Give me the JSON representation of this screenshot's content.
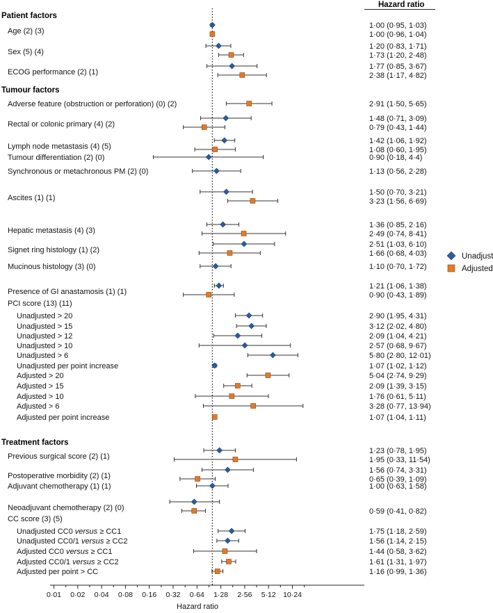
{
  "chart_data": {
    "type": "forest",
    "value_header": "Hazard ratio",
    "xlabel": "Hazard ratio",
    "x_scale": "log2",
    "xlim": [
      0.01,
      20.48
    ],
    "x_ticks": [
      "0·01",
      "0·02",
      "0·04",
      "0·08",
      "0·16",
      "0·32",
      "0·64",
      "1·28",
      "2·56",
      "5·12",
      "10·24"
    ],
    "x_tick_values": [
      0.01,
      0.02,
      0.04,
      0.08,
      0.16,
      0.32,
      0.64,
      1.28,
      2.56,
      5.12,
      10.24
    ],
    "reference_line": 1.0,
    "legend": {
      "unadjusted": {
        "label": "Unadjusted",
        "color": "#2a5d9f"
      },
      "adjusted": {
        "label": "Adjusted",
        "color": "#e07b2a"
      }
    },
    "rows": [
      {
        "kind": "section",
        "label": "Patient factors"
      },
      {
        "kind": "factor",
        "label": "Age (2) (3)",
        "est": [
          {
            "type": "u",
            "hr": 1.0,
            "lo": 0.95,
            "hi": 1.03,
            "text": "1·00 (0·95, 1·03)"
          },
          {
            "type": "a",
            "hr": 1.0,
            "lo": 0.96,
            "hi": 1.04,
            "text": "1·00 (0·96, 1·04)"
          }
        ]
      },
      {
        "kind": "factor",
        "label": "Sex (5) (4)",
        "est": [
          {
            "type": "u",
            "hr": 1.2,
            "lo": 0.83,
            "hi": 1.71,
            "text": "1·20 (0·83, 1·71)"
          },
          {
            "type": "a",
            "hr": 1.73,
            "lo": 1.2,
            "hi": 2.48,
            "text": "1·73 (1·20, 2·48)"
          }
        ]
      },
      {
        "kind": "factor",
        "label": "ECOG performance (2) (1)",
        "est": [
          {
            "type": "u",
            "hr": 1.77,
            "lo": 0.85,
            "hi": 3.67,
            "text": "1·77 (0·85, 3·67)"
          },
          {
            "type": "a",
            "hr": 2.38,
            "lo": 1.17,
            "hi": 4.82,
            "text": "2·38 (1·17, 4·82)"
          }
        ]
      },
      {
        "kind": "section",
        "label": "Tumour factors"
      },
      {
        "kind": "factor",
        "label": "Adverse feature (obstruction or perforation) (0) (2)",
        "est": [
          {
            "type": "a",
            "hr": 2.91,
            "lo": 1.5,
            "hi": 5.65,
            "text": "2·91 (1·50, 5·65)"
          }
        ]
      },
      {
        "kind": "factor",
        "label": "Rectal or colonic primary (4) (2)",
        "est": [
          {
            "type": "u",
            "hr": 1.48,
            "lo": 0.71,
            "hi": 3.09,
            "text": "1·48 (0·71, 3·09)"
          },
          {
            "type": "a",
            "hr": 0.79,
            "lo": 0.43,
            "hi": 1.44,
            "text": "0·79 (0·43, 1·44)"
          }
        ]
      },
      {
        "kind": "factor",
        "label": "Lymph node metastasis (4) (5)",
        "est": [
          {
            "type": "u",
            "hr": 1.42,
            "lo": 1.06,
            "hi": 1.92,
            "text": "1·42 (1·06, 1·92)"
          },
          {
            "type": "a",
            "hr": 1.08,
            "lo": 0.6,
            "hi": 1.95,
            "text": "1·08 (0·60, 1·95)"
          }
        ]
      },
      {
        "kind": "factor",
        "label": "Tumour differentiation (2) (0)",
        "est": [
          {
            "type": "u",
            "hr": 0.9,
            "lo": 0.18,
            "hi": 4.4,
            "text": "0·90 (0·18, 4·4)"
          }
        ]
      },
      {
        "kind": "factor",
        "label": "Synchronous or metachronous PM (2) (0)",
        "est": [
          {
            "type": "u",
            "hr": 1.13,
            "lo": 0.56,
            "hi": 2.28,
            "text": "1·13 (0·56, 2·28)"
          }
        ]
      },
      {
        "kind": "factor",
        "label": "Ascites (1) (1)",
        "est": [
          {
            "type": "u",
            "hr": 1.5,
            "lo": 0.7,
            "hi": 3.21,
            "text": "1·50 (0·70, 3·21)"
          },
          {
            "type": "a",
            "hr": 3.23,
            "lo": 1.56,
            "hi": 6.69,
            "text": "3·23 (1·56, 6·69)"
          }
        ]
      },
      {
        "kind": "factor",
        "label": "Hepatic metastasis (4) (3)",
        "est": [
          {
            "type": "u",
            "hr": 1.36,
            "lo": 0.85,
            "hi": 2.16,
            "text": "1·36 (0·85, 2·16)"
          },
          {
            "type": "a",
            "hr": 2.49,
            "lo": 0.74,
            "hi": 8.41,
            "text": "2·49 (0·74, 8·41)"
          }
        ]
      },
      {
        "kind": "factor",
        "label": "Signet ring histology (1) (2)",
        "est": [
          {
            "type": "u",
            "hr": 2.51,
            "lo": 1.03,
            "hi": 6.1,
            "text": "2·51 (1·03, 6·10)"
          },
          {
            "type": "a",
            "hr": 1.66,
            "lo": 0.68,
            "hi": 4.03,
            "text": "1·66 (0·68, 4·03)"
          }
        ]
      },
      {
        "kind": "factor",
        "label": "Mucinous histology (3) (0)",
        "est": [
          {
            "type": "u",
            "hr": 1.1,
            "lo": 0.7,
            "hi": 1.72,
            "text": "1·10 (0·70, 1·72)"
          }
        ]
      },
      {
        "kind": "factor",
        "label": "Presence of GI anastamosis (1) (1)",
        "est": [
          {
            "type": "u",
            "hr": 1.21,
            "lo": 1.06,
            "hi": 1.38,
            "text": "1·21 (1·06, 1·38)"
          },
          {
            "type": "a",
            "hr": 0.9,
            "lo": 0.43,
            "hi": 1.89,
            "text": "0·90 (0·43, 1·89)"
          }
        ]
      },
      {
        "kind": "factor",
        "label": "PCI score (13) (11)",
        "est": []
      },
      {
        "kind": "sub",
        "label": "Unadjusted > 20",
        "est": [
          {
            "type": "u",
            "hr": 2.9,
            "lo": 1.95,
            "hi": 4.31,
            "text": "2·90 (1·95, 4·31)"
          }
        ]
      },
      {
        "kind": "sub",
        "label": "Unadjusted > 15",
        "est": [
          {
            "type": "u",
            "hr": 3.12,
            "lo": 2.02,
            "hi": 4.8,
            "text": "3·12 (2·02, 4·80)"
          }
        ]
      },
      {
        "kind": "sub",
        "label": "Unadjusted > 12",
        "est": [
          {
            "type": "u",
            "hr": 2.09,
            "lo": 1.04,
            "hi": 4.21,
            "text": "2·09 (1·04, 4·21)"
          }
        ]
      },
      {
        "kind": "sub",
        "label": "Unadjusted > 10",
        "est": [
          {
            "type": "u",
            "hr": 2.57,
            "lo": 0.68,
            "hi": 9.67,
            "text": "2·57 (0·68, 9·67)"
          }
        ]
      },
      {
        "kind": "sub",
        "label": "Unadjusted > 6",
        "est": [
          {
            "type": "u",
            "hr": 5.8,
            "lo": 2.8,
            "hi": 12.01,
            "text": "5·80 (2·80, 12·01)"
          }
        ]
      },
      {
        "kind": "sub",
        "label": "Unadjusted per point increase",
        "est": [
          {
            "type": "u",
            "hr": 1.07,
            "lo": 1.02,
            "hi": 1.12,
            "text": "1·07 (1·02, 1·12)"
          }
        ]
      },
      {
        "kind": "sub",
        "label": "Adjusted > 20",
        "est": [
          {
            "type": "a",
            "hr": 5.04,
            "lo": 2.74,
            "hi": 9.29,
            "text": "5·04 (2·74, 9·29)"
          }
        ]
      },
      {
        "kind": "sub",
        "label": "Adjusted > 15",
        "est": [
          {
            "type": "a",
            "hr": 2.09,
            "lo": 1.39,
            "hi": 3.15,
            "text": "2·09 (1·39, 3·15)"
          }
        ]
      },
      {
        "kind": "sub",
        "label": "Adjusted > 10",
        "est": [
          {
            "type": "a",
            "hr": 1.76,
            "lo": 0.61,
            "hi": 5.11,
            "text": "1·76 (0·61, 5·11)"
          }
        ]
      },
      {
        "kind": "sub",
        "label": "Adjusted > 6",
        "est": [
          {
            "type": "a",
            "hr": 3.28,
            "lo": 0.77,
            "hi": 13.94,
            "text": "3·28 (0·77, 13·94)"
          }
        ]
      },
      {
        "kind": "sub",
        "label": "Adjusted per point increase",
        "est": [
          {
            "type": "a",
            "hr": 1.07,
            "lo": 1.04,
            "hi": 1.11,
            "text": "1·07 (1·04, 1·11)"
          }
        ]
      },
      {
        "kind": "section",
        "label": "Treatment factors"
      },
      {
        "kind": "factor",
        "label": "Previous surgical score (2) (1)",
        "est": [
          {
            "type": "u",
            "hr": 1.23,
            "lo": 0.78,
            "hi": 1.95,
            "text": "1·23 (0·78, 1·95)"
          },
          {
            "type": "a",
            "hr": 1.95,
            "lo": 0.33,
            "hi": 11.54,
            "text": "1·95 (0·33, 11·54)"
          }
        ]
      },
      {
        "kind": "factor",
        "label": "Postoperative morbidity (2) (1)",
        "est": [
          {
            "type": "u",
            "hr": 1.56,
            "lo": 0.74,
            "hi": 3.31,
            "text": "1·56 (0·74, 3·31)"
          },
          {
            "type": "a",
            "hr": 0.65,
            "lo": 0.39,
            "hi": 1.09,
            "text": "0·65 (0·39, 1·09)"
          }
        ]
      },
      {
        "kind": "factor",
        "label": "Adjuvant chemotherapy (1) (1)",
        "est": [
          {
            "type": "u",
            "hr": 1.0,
            "lo": 0.63,
            "hi": 1.58,
            "text": "1·00 (0·63, 1·58)"
          }
        ]
      },
      {
        "kind": "factor",
        "label": "Neoadjuvant chemotherapy (2) (0)",
        "est": [
          {
            "type": "u",
            "hr": 0.59,
            "lo": 0.29,
            "hi": 1.23,
            "text": ""
          },
          {
            "type": "a",
            "hr": 0.59,
            "lo": 0.41,
            "hi": 0.82,
            "text": "0·59 (0·41, 0·82)"
          }
        ]
      },
      {
        "kind": "factor",
        "label": "CC score (3) (5)",
        "est": []
      },
      {
        "kind": "sub",
        "label": "Unadjusted CC0 versus ≥ CC1",
        "est": [
          {
            "type": "u",
            "hr": 1.75,
            "lo": 1.18,
            "hi": 2.59,
            "text": "1·75 (1·18, 2·59)"
          }
        ]
      },
      {
        "kind": "sub",
        "label": "Unadjusted CC0/1 versus ≥ CC2",
        "est": [
          {
            "type": "u",
            "hr": 1.56,
            "lo": 1.14,
            "hi": 2.15,
            "text": "1·56 (1·14, 2·15)"
          }
        ]
      },
      {
        "kind": "sub",
        "label": "Adjusted CC0 versus ≥ CC1",
        "est": [
          {
            "type": "a",
            "hr": 1.44,
            "lo": 0.58,
            "hi": 3.62,
            "text": "1·44 (0·58, 3·62)"
          }
        ]
      },
      {
        "kind": "sub",
        "label": "Adjusted CC0/1 versus ≥ CC2",
        "est": [
          {
            "type": "a",
            "hr": 1.61,
            "lo": 1.31,
            "hi": 1.97,
            "text": "1·61 (1·31, 1·97)"
          }
        ]
      },
      {
        "kind": "sub",
        "label": "Adjusted per point > CC",
        "est": [
          {
            "type": "a",
            "hr": 1.16,
            "lo": 0.99,
            "hi": 1.36,
            "text": "1·16 (0·99, 1·36)"
          }
        ]
      }
    ]
  }
}
